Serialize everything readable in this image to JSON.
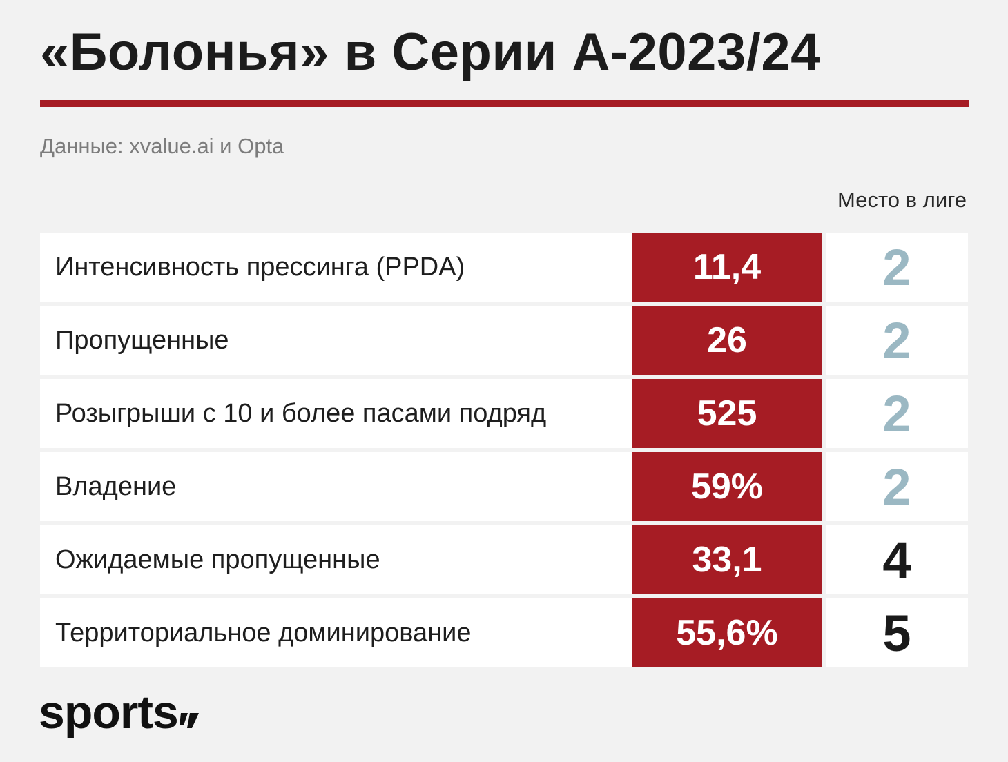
{
  "title": "«Болонья» в Серии А-2023/24",
  "source": "Данные: xvalue.ai и Opta",
  "rank_header": "Место в лиге",
  "colors": {
    "accent": "#a61c24",
    "rank_top": "#9bb8c3",
    "rank_other": "#1a1a1a",
    "background": "#f2f2f2"
  },
  "rows": [
    {
      "label": "Интенсивность прессинга (PPDA)",
      "value": "11,4",
      "rank": "2",
      "highlight": true
    },
    {
      "label": "Пропущенные",
      "value": "26",
      "rank": "2",
      "highlight": true
    },
    {
      "label": "Розыгрыши с 10 и более пасами подряд",
      "value": "525",
      "rank": "2",
      "highlight": true
    },
    {
      "label": "Владение",
      "value": "59%",
      "rank": "2",
      "highlight": true
    },
    {
      "label": "Ожидаемые пропущенные",
      "value": "33,1",
      "rank": "4",
      "highlight": false
    },
    {
      "label": "Территориальное доминирование",
      "value": "55,6%",
      "rank": "5",
      "highlight": false
    }
  ],
  "logo": {
    "text": "sports",
    "icon": "quote-mark-icon"
  }
}
